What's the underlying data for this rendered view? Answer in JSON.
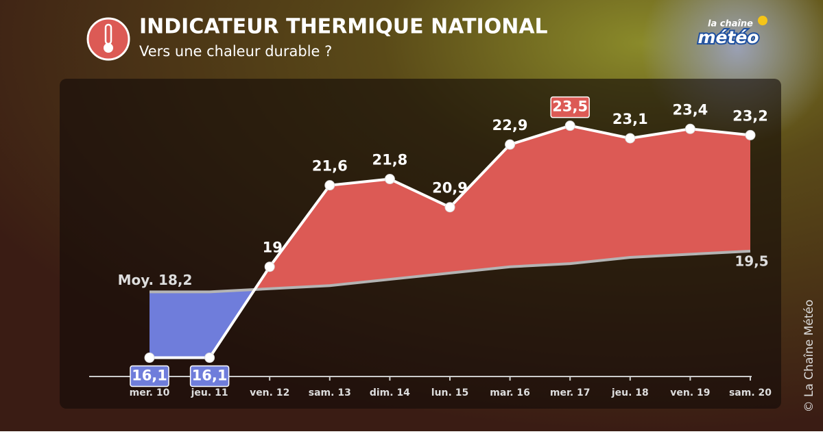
{
  "chart_data": {
    "type": "area-vs-normal",
    "title": "INDICATEUR THERMIQUE NATIONAL",
    "subtitle": "Vers une chaleur durable ?",
    "logo": [
      "la chaîne",
      "météo"
    ],
    "credit": "© La Chaîne Météo",
    "categories": [
      "mer. 10",
      "jeu. 11",
      "ven. 12",
      "sam. 13",
      "dim. 14",
      "lun. 15",
      "mar. 16",
      "mer. 17",
      "jeu. 18",
      "ven. 19",
      "sam. 20"
    ],
    "series": [
      {
        "color": "#ffffff",
        "values": [
          16.1,
          16.1,
          19,
          21.6,
          21.8,
          20.9,
          22.9,
          23.5,
          23.1,
          23.4,
          23.2
        ],
        "value_labels": [
          "16,1",
          "16,1",
          "19",
          "21,6",
          "21,8",
          "20,9",
          "22,9",
          "23,5",
          "23,1",
          "23,4",
          "23,2"
        ]
      },
      {
        "color": "#b4b4b4",
        "values": [
          18.2,
          18.2,
          18.3,
          18.4,
          18.6,
          18.8,
          19.0,
          19.1,
          19.3,
          19.4,
          19.5
        ],
        "value_labels": [
          "Moy. 18,2",
          null,
          null,
          null,
          null,
          null,
          null,
          null,
          null,
          null,
          "19,5"
        ]
      }
    ],
    "above_color": "#dc5a55",
    "below_color": "#6f7ddb",
    "ylim": [
      15.5,
      25
    ]
  }
}
